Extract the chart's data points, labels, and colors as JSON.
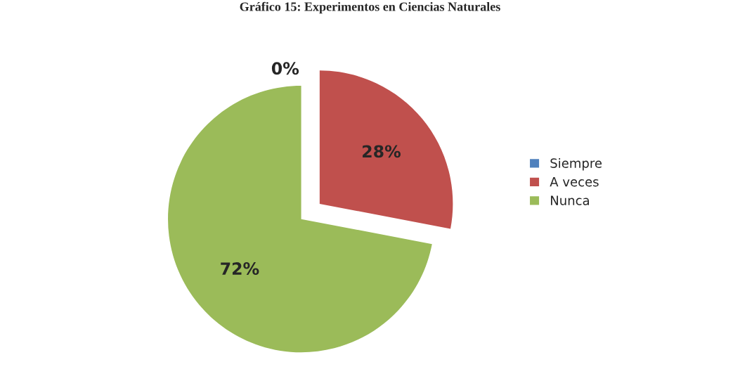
{
  "chart_data": {
    "type": "pie",
    "title": "Gráfico 15: Experimentos en Ciencias Naturales",
    "categories": [
      "Siempre",
      "A veces",
      "Nunca"
    ],
    "values": [
      0,
      28,
      72
    ],
    "colors": [
      "#4f81bd",
      "#c0504d",
      "#9bbb59"
    ],
    "value_labels": [
      "0%",
      "28%",
      "72%"
    ],
    "legend": "right"
  }
}
